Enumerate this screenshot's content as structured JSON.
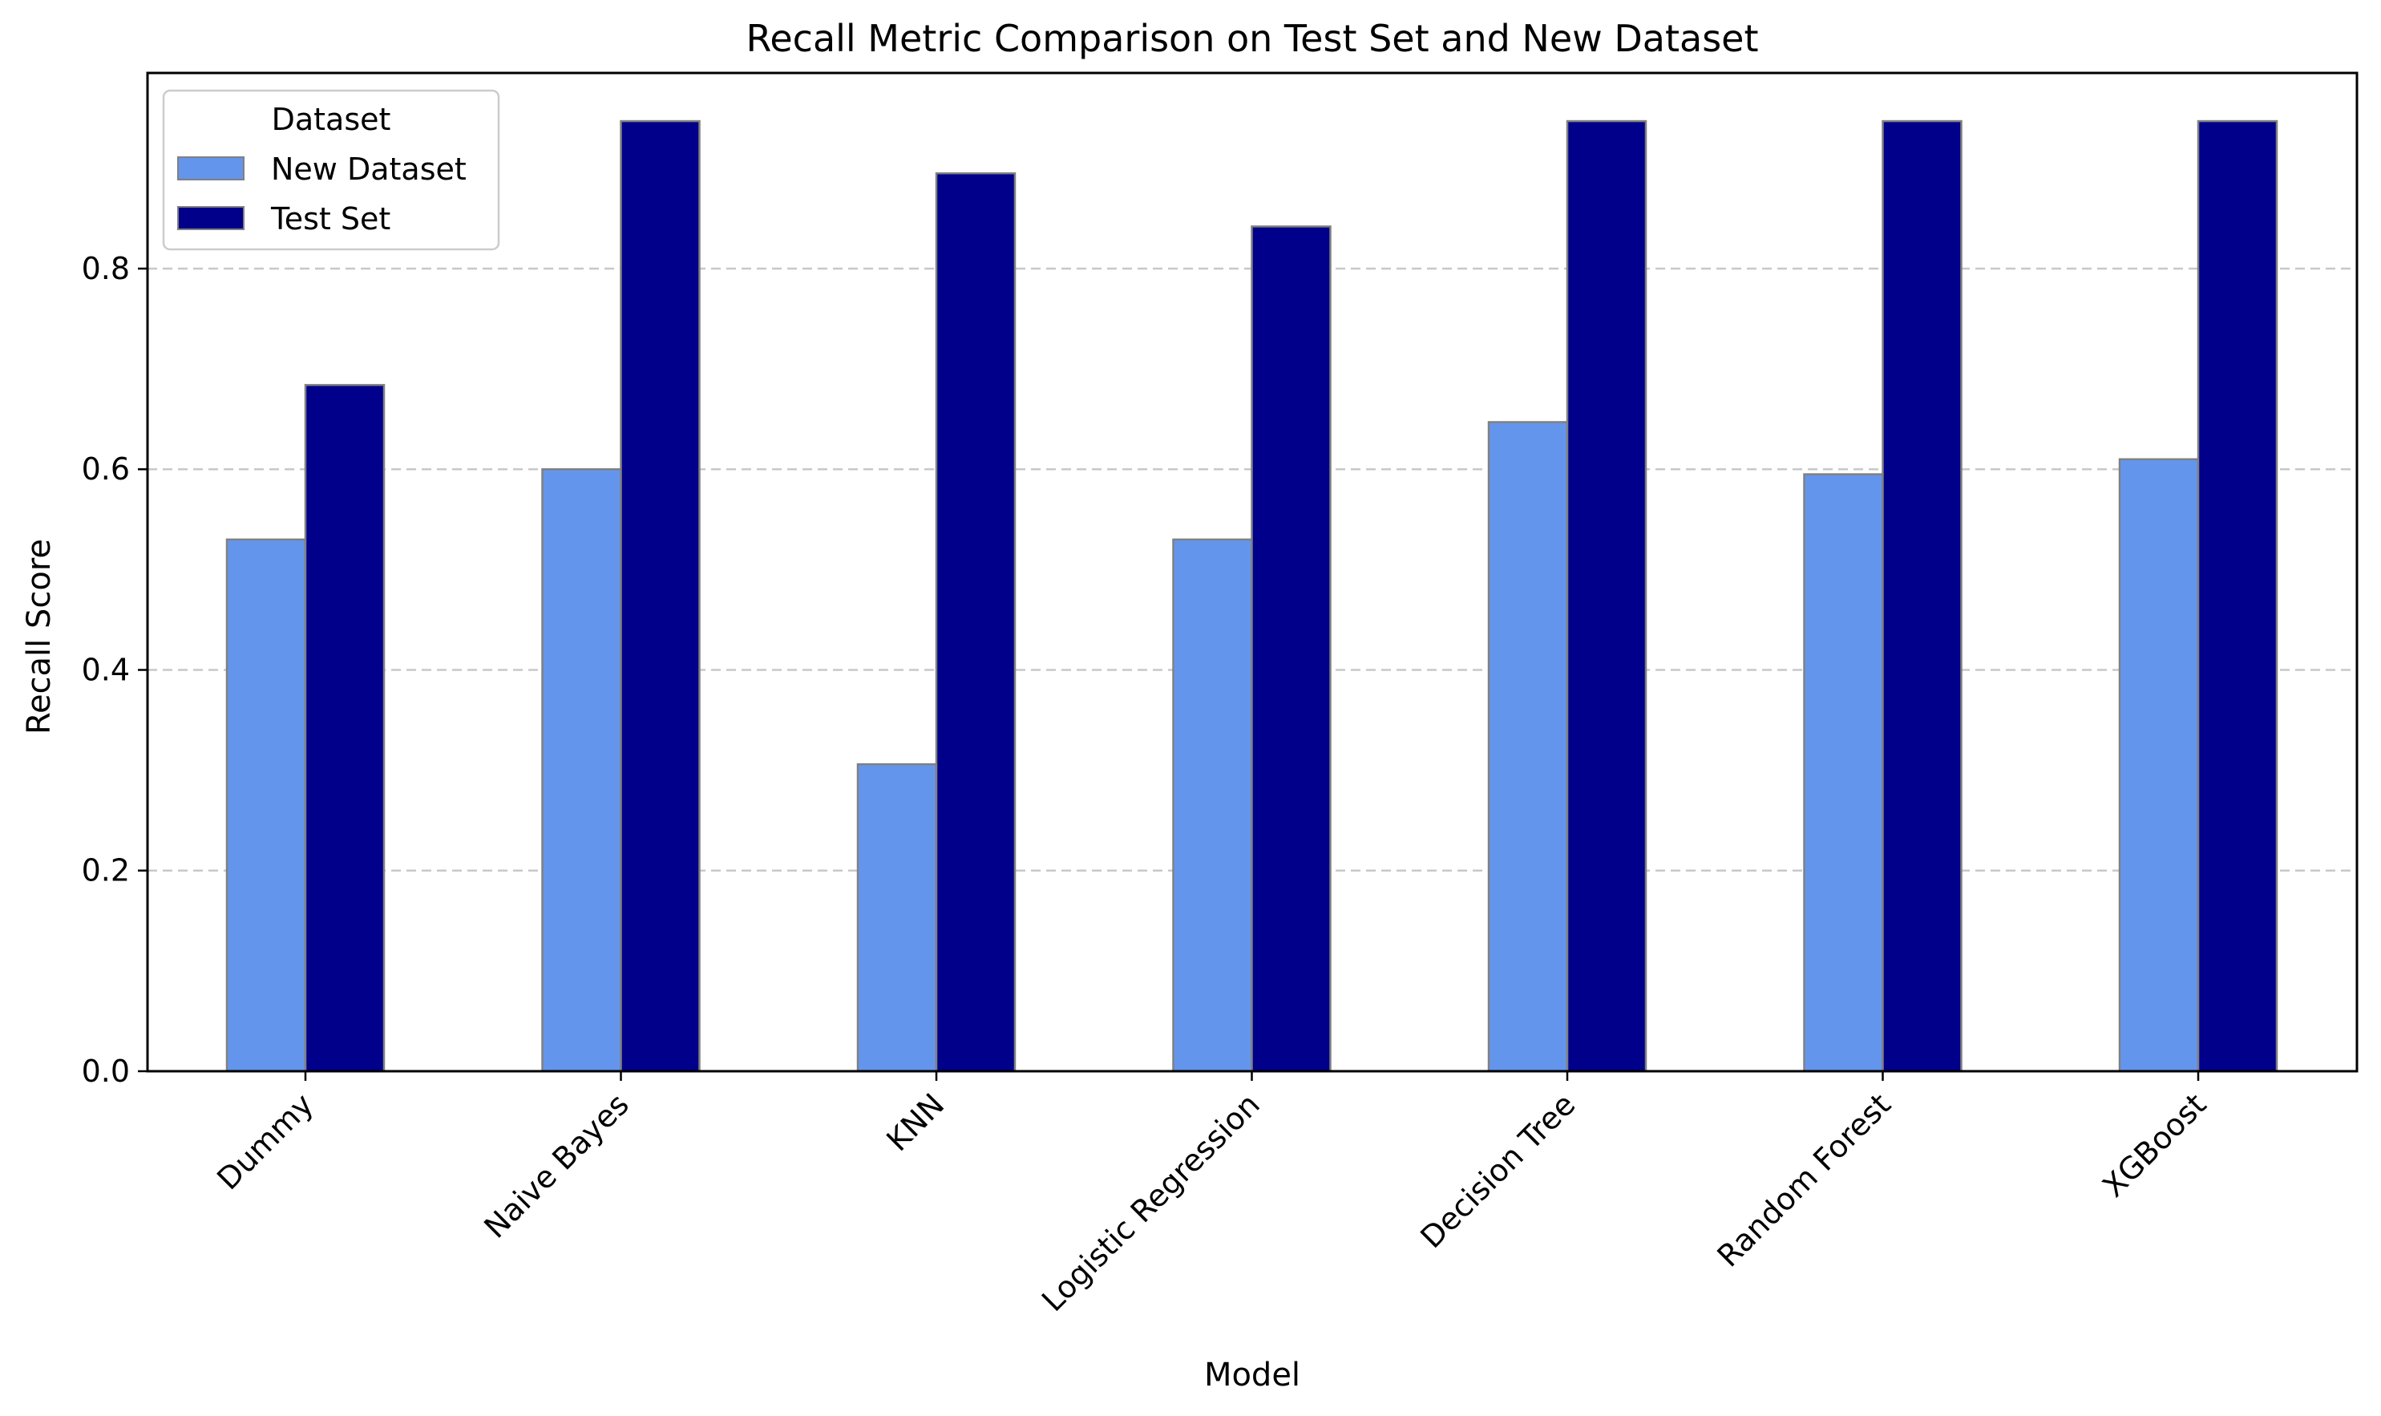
{
  "chart_data": {
    "type": "bar",
    "title": "Recall Metric Comparison on Test Set and New Dataset",
    "xlabel": "Model",
    "ylabel": "Recall Score",
    "categories": [
      "Dummy",
      "Naive Bayes",
      "KNN",
      "Logistic Regression",
      "Decision Tree",
      "Random Forest",
      "XGBoost"
    ],
    "series": [
      {
        "name": "New Dataset",
        "color": "#6495ED",
        "values": [
          0.53,
          0.6,
          0.306,
          0.53,
          0.647,
          0.595,
          0.61
        ]
      },
      {
        "name": "Test Set",
        "color": "#00008B",
        "values": [
          0.684,
          0.947,
          0.895,
          0.842,
          0.947,
          0.947,
          0.947
        ]
      }
    ],
    "ylim": [
      0,
      0.995
    ],
    "yticks": [
      "0.0",
      "0.2",
      "0.4",
      "0.6",
      "0.8"
    ],
    "grid": "y-dashed",
    "legend": {
      "title": "Dataset",
      "position": "top-left"
    },
    "bar_edge_color": "#808080"
  }
}
